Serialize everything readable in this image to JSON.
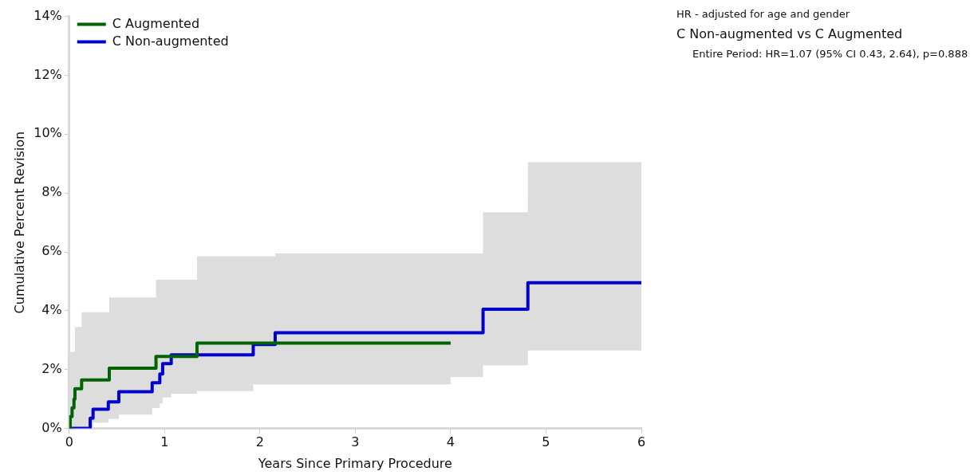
{
  "chart_data": {
    "type": "step",
    "xlabel": "Years Since Primary Procedure",
    "ylabel": "Cumulative Percent Revision",
    "xlim": [
      0,
      6
    ],
    "xticks": [
      0,
      1,
      2,
      3,
      4,
      5,
      6
    ],
    "ylim": [
      0,
      14
    ],
    "yticks": [
      {
        "value": 0,
        "label": "0%"
      },
      {
        "value": 2,
        "label": "2%"
      },
      {
        "value": 4,
        "label": "4%"
      },
      {
        "value": 6,
        "label": "6%"
      },
      {
        "value": 8,
        "label": "8%"
      },
      {
        "value": 10,
        "label": "10%"
      },
      {
        "value": 12,
        "label": "12%"
      },
      {
        "value": 14,
        "label": "14%"
      }
    ],
    "grid": false,
    "legend": "top left",
    "series": [
      {
        "name": "C Augmented",
        "color": "#006400",
        "x": [
          0,
          0.01,
          0.03,
          0.05,
          0.06,
          0.13,
          0.42,
          0.91,
          1.34,
          4
        ],
        "values": [
          0,
          0.4,
          0.7,
          1.0,
          1.35,
          1.65,
          2.05,
          2.45,
          2.9,
          2.9
        ]
      },
      {
        "name": "C Non-augmented",
        "color": "#0000cc",
        "x": [
          0,
          0.06,
          0.13,
          0.22,
          0.25,
          0.41,
          0.42,
          0.52,
          0.87,
          0.91,
          0.95,
          0.98,
          1.07,
          1.34,
          1.93,
          2.16,
          4.0,
          4.34,
          4.81,
          6
        ],
        "values": [
          0,
          0,
          0,
          0.35,
          0.65,
          0.9,
          0.9,
          1.25,
          1.55,
          1.55,
          1.85,
          2.2,
          2.5,
          2.5,
          2.85,
          3.25,
          3.25,
          4.05,
          4.95,
          4.95
        ],
        "lower": [
          0,
          0,
          0,
          0,
          0.2,
          0.33,
          0.33,
          0.47,
          0.69,
          0.69,
          0.85,
          1.05,
          1.18,
          1.27,
          1.5,
          1.5,
          1.75,
          2.15,
          2.65,
          2.65
        ],
        "upper": [
          2.6,
          3.45,
          3.95,
          3.95,
          3.95,
          3.95,
          4.45,
          4.45,
          4.45,
          5.05,
          5.05,
          5.05,
          5.05,
          5.85,
          5.85,
          5.95,
          5.95,
          7.35,
          9.05,
          9.05
        ]
      }
    ],
    "annotations": [
      "HR - adjusted for age and gender",
      "C Non-augmented vs C Augmented",
      "Entire Period: HR=1.07 (95% CI 0.43, 2.64), p=0.888"
    ]
  }
}
